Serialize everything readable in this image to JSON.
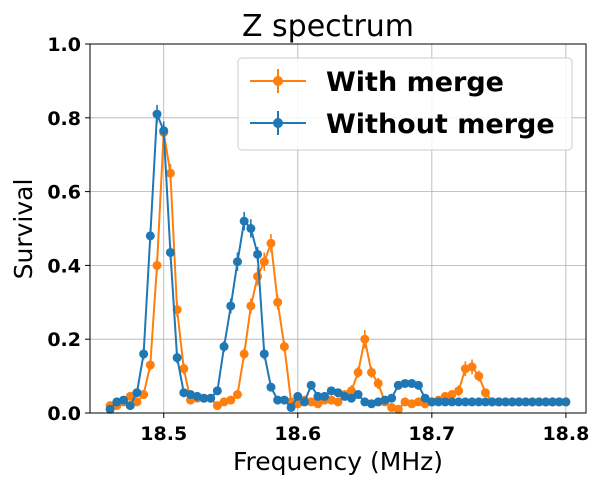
{
  "chart_data": {
    "type": "line",
    "title": "Z spectrum",
    "xlabel": "Frequency (MHz)",
    "ylabel": "Survival",
    "xlim": [
      18.445,
      18.815
    ],
    "ylim": [
      0,
      1.0
    ],
    "xticks": [
      18.5,
      18.6,
      18.7,
      18.8
    ],
    "xtick_labels": [
      "18.5",
      "18.6",
      "18.7",
      "18.8"
    ],
    "yticks": [
      0.0,
      0.2,
      0.4,
      0.6,
      0.8,
      1.0
    ],
    "ytick_labels": [
      "0.0",
      "0.2",
      "0.4",
      "0.6",
      "0.8",
      "1.0"
    ],
    "grid": true,
    "legend_position": "top-right",
    "series": [
      {
        "name": "With merge",
        "color": "#ff7f0e",
        "x": [
          18.46,
          18.465,
          18.47,
          18.475,
          18.48,
          18.485,
          18.49,
          18.495,
          18.5,
          18.505,
          18.51,
          18.515,
          18.52,
          18.525,
          18.53,
          18.535,
          18.54,
          18.545,
          18.55,
          18.555,
          18.56,
          18.565,
          18.57,
          18.575,
          18.58,
          18.585,
          18.59,
          18.595,
          18.6,
          18.605,
          18.61,
          18.615,
          18.62,
          18.625,
          18.63,
          18.635,
          18.64,
          18.645,
          18.65,
          18.655,
          18.66,
          18.665,
          18.67,
          18.675,
          18.68,
          18.685,
          18.69,
          18.695,
          18.7,
          18.705,
          18.71,
          18.715,
          18.72,
          18.725,
          18.73,
          18.735,
          18.74,
          18.745,
          18.75,
          18.755,
          18.76,
          18.765,
          18.77,
          18.775,
          18.78,
          18.785,
          18.79,
          18.795,
          18.8
        ],
        "y": [
          0.02,
          0.02,
          0.03,
          0.045,
          0.03,
          0.05,
          0.13,
          0.4,
          0.76,
          0.65,
          0.28,
          0.12,
          0.035,
          0.04,
          0.04,
          0.04,
          0.02,
          0.03,
          0.035,
          0.05,
          0.16,
          0.29,
          0.37,
          0.41,
          0.46,
          0.3,
          0.18,
          0.03,
          0.025,
          0.035,
          0.03,
          0.025,
          0.035,
          0.035,
          0.03,
          0.05,
          0.06,
          0.11,
          0.2,
          0.11,
          0.08,
          0.03,
          0.015,
          0.01,
          0.03,
          0.025,
          0.03,
          0.025,
          0.03,
          0.035,
          0.045,
          0.05,
          0.06,
          0.12,
          0.125,
          0.1,
          0.055,
          0.03,
          0.03,
          0.03,
          0.03,
          0.03,
          0.03,
          0.03,
          0.03,
          0.03,
          0.03,
          0.03,
          0.03
        ],
        "yerr": [
          0.01,
          0.01,
          0.01,
          0.01,
          0.01,
          0.01,
          0.015,
          0.02,
          0.025,
          0.025,
          0.02,
          0.015,
          0.01,
          0.01,
          0.01,
          0.01,
          0.01,
          0.01,
          0.01,
          0.01,
          0.015,
          0.02,
          0.025,
          0.025,
          0.025,
          0.02,
          0.015,
          0.01,
          0.01,
          0.01,
          0.01,
          0.01,
          0.01,
          0.01,
          0.01,
          0.01,
          0.015,
          0.015,
          0.025,
          0.015,
          0.015,
          0.01,
          0.01,
          0.01,
          0.01,
          0.01,
          0.01,
          0.01,
          0.01,
          0.01,
          0.01,
          0.01,
          0.015,
          0.02,
          0.02,
          0.015,
          0.01,
          0.01,
          0.01,
          0.01,
          0.01,
          0.01,
          0.01,
          0.01,
          0.01,
          0.01,
          0.01,
          0.01,
          0.01
        ]
      },
      {
        "name": "Without merge",
        "color": "#1f77b4",
        "x": [
          18.46,
          18.465,
          18.47,
          18.475,
          18.48,
          18.485,
          18.49,
          18.495,
          18.5,
          18.505,
          18.51,
          18.515,
          18.52,
          18.525,
          18.53,
          18.535,
          18.54,
          18.545,
          18.55,
          18.555,
          18.56,
          18.565,
          18.57,
          18.575,
          18.58,
          18.585,
          18.59,
          18.595,
          18.6,
          18.605,
          18.61,
          18.615,
          18.62,
          18.625,
          18.63,
          18.635,
          18.64,
          18.645,
          18.65,
          18.655,
          18.66,
          18.665,
          18.67,
          18.675,
          18.68,
          18.685,
          18.69,
          18.695,
          18.7,
          18.705,
          18.71,
          18.715,
          18.72,
          18.725,
          18.73,
          18.735,
          18.74,
          18.745,
          18.75,
          18.755,
          18.76,
          18.765,
          18.77,
          18.775,
          18.78,
          18.785,
          18.79,
          18.795,
          18.8
        ],
        "y": [
          0.01,
          0.03,
          0.035,
          0.02,
          0.055,
          0.16,
          0.48,
          0.81,
          0.765,
          0.435,
          0.15,
          0.055,
          0.05,
          0.045,
          0.04,
          0.04,
          0.06,
          0.18,
          0.29,
          0.41,
          0.52,
          0.5,
          0.43,
          0.16,
          0.07,
          0.035,
          0.035,
          0.015,
          0.045,
          0.03,
          0.075,
          0.045,
          0.045,
          0.06,
          0.055,
          0.045,
          0.04,
          0.05,
          0.03,
          0.025,
          0.03,
          0.035,
          0.04,
          0.075,
          0.08,
          0.08,
          0.075,
          0.04,
          0.03,
          0.03,
          0.03,
          0.03,
          0.03,
          0.03,
          0.03,
          0.03,
          0.03,
          0.03,
          0.03,
          0.03,
          0.03,
          0.03,
          0.03,
          0.03,
          0.03,
          0.03,
          0.03,
          0.03,
          0.03
        ],
        "yerr": [
          0.01,
          0.01,
          0.01,
          0.01,
          0.01,
          0.015,
          0.02,
          0.025,
          0.025,
          0.02,
          0.015,
          0.01,
          0.01,
          0.01,
          0.01,
          0.01,
          0.01,
          0.015,
          0.02,
          0.025,
          0.025,
          0.025,
          0.02,
          0.015,
          0.01,
          0.01,
          0.01,
          0.01,
          0.01,
          0.01,
          0.01,
          0.01,
          0.01,
          0.01,
          0.01,
          0.01,
          0.01,
          0.01,
          0.01,
          0.01,
          0.01,
          0.01,
          0.01,
          0.01,
          0.01,
          0.01,
          0.01,
          0.01,
          0.01,
          0.01,
          0.01,
          0.01,
          0.01,
          0.01,
          0.01,
          0.01,
          0.01,
          0.01,
          0.01,
          0.01,
          0.01,
          0.01,
          0.01,
          0.01,
          0.01,
          0.01,
          0.01,
          0.01,
          0.01
        ]
      }
    ]
  }
}
